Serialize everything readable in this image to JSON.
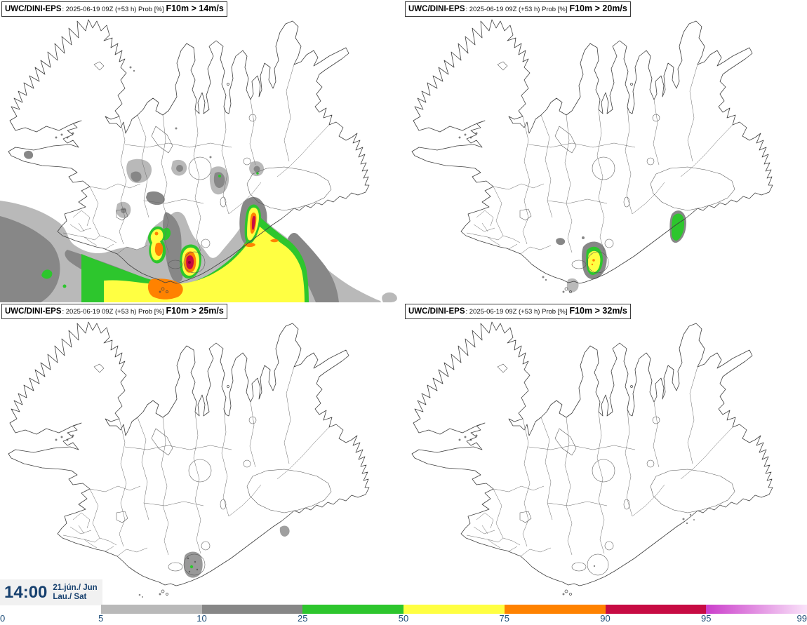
{
  "panels": [
    {
      "model": "UWC/DINI-EPS",
      "run": ": 2025-06-19 09Z (+53 h) Prob [%]",
      "threshold": "F10m > 14m/s"
    },
    {
      "model": "UWC/DINI-EPS",
      "run": ": 2025-06-19 09Z (+53 h) Prob [%]",
      "threshold": "F10m > 20m/s"
    },
    {
      "model": "UWC/DINI-EPS",
      "run": ": 2025-06-19 09Z (+53 h) Prob [%]",
      "threshold": "F10m > 25m/s"
    },
    {
      "model": "UWC/DINI-EPS",
      "run": ": 2025-06-19 09Z (+53 h) Prob [%]",
      "threshold": "F10m > 32m/s"
    }
  ],
  "timebox": {
    "time": "14:00",
    "date": "21.jún./ Jun",
    "day": "Lau./ Sat"
  },
  "colorbar": {
    "tick_labels": [
      "0",
      "5",
      "10",
      "25",
      "50",
      "75",
      "90",
      "95",
      "99"
    ],
    "segments": [
      {
        "from": "0",
        "to": "5",
        "color": null
      },
      {
        "from": "5",
        "to": "10",
        "color": "#b9b9b9"
      },
      {
        "from": "10",
        "to": "25",
        "color": "#878787"
      },
      {
        "from": "25",
        "to": "50",
        "color": "#2dc62d"
      },
      {
        "from": "50",
        "to": "75",
        "color": "#ffff42"
      },
      {
        "from": "75",
        "to": "90",
        "color": "#ff8200"
      },
      {
        "from": "90",
        "to": "95",
        "color": "#c70b43"
      },
      {
        "from": "95",
        "to": "99",
        "color_start": "#cb3ecb",
        "color_end": "#f9e3f9"
      }
    ],
    "text_color": "#1f4e79"
  },
  "map_colors": {
    "prob_5_10": "#b9b9b9",
    "prob_10_25": "#878787",
    "prob_25_50": "#2dc62d",
    "prob_50_75": "#ffff42",
    "prob_75_90": "#ff8200",
    "prob_90_95": "#c70b43",
    "prob_core_dot": "#8c0032",
    "coast_stroke": "#3f3f3f"
  }
}
